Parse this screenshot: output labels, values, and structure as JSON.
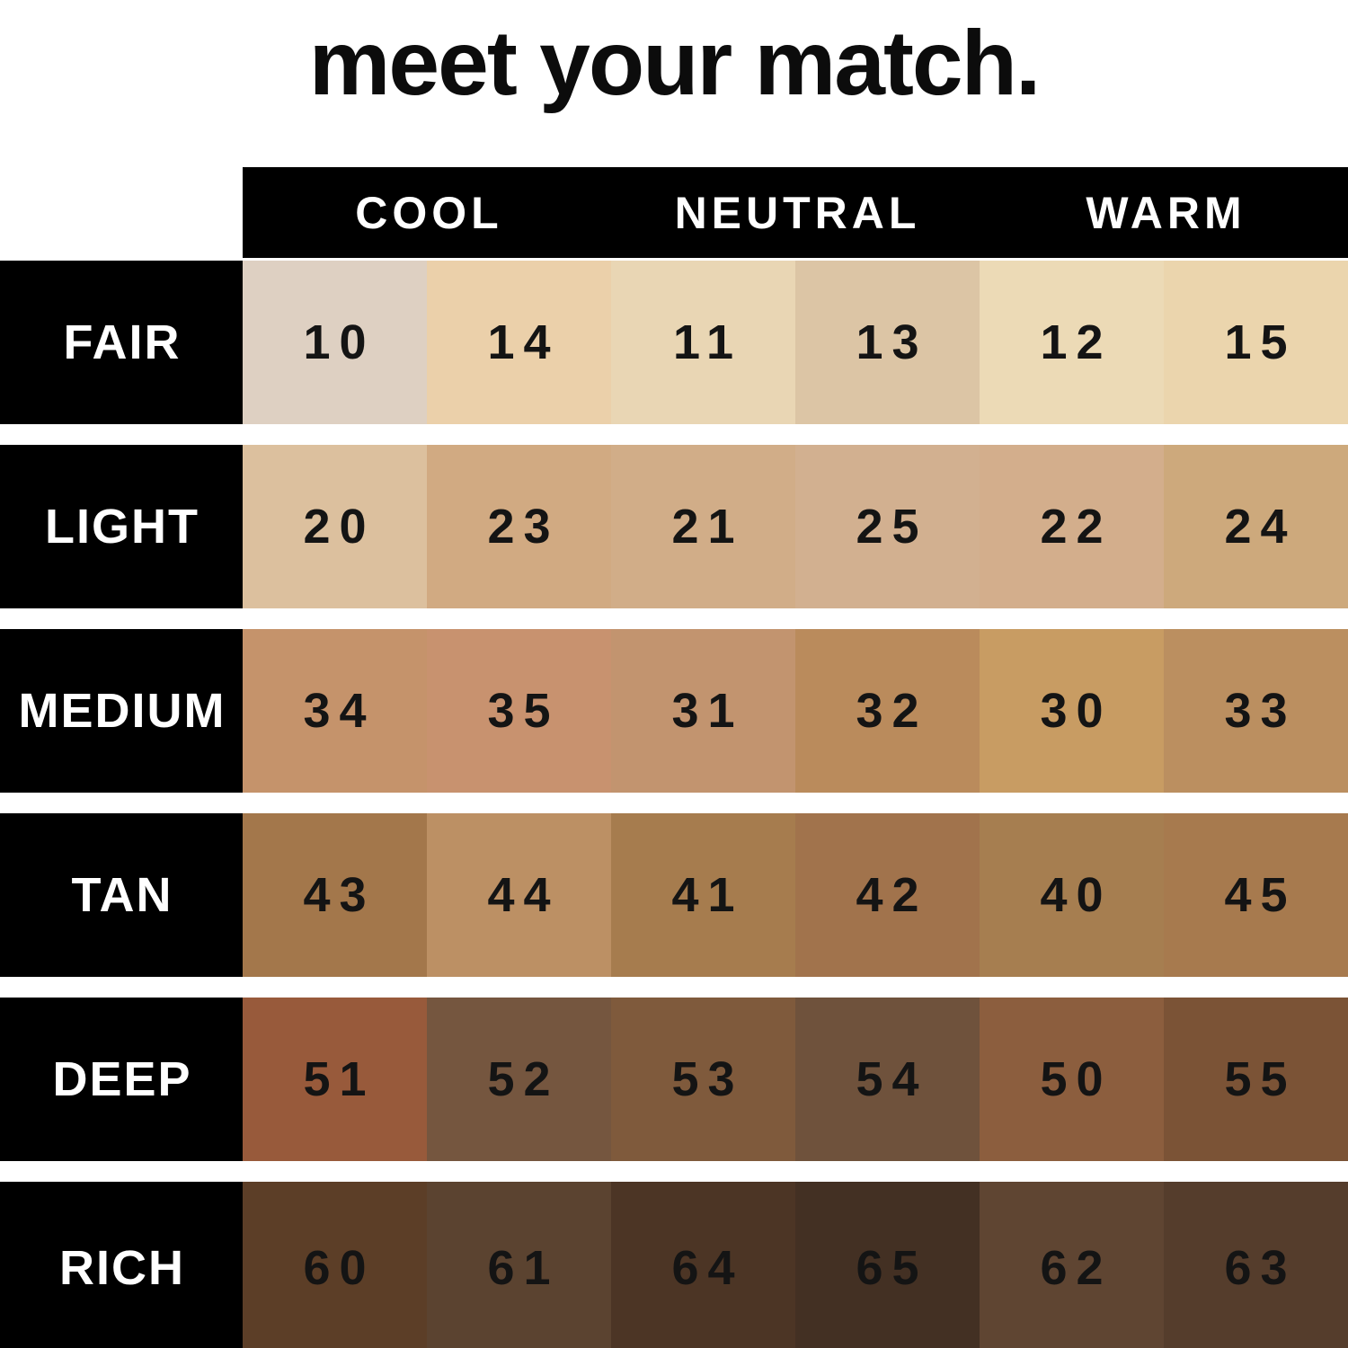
{
  "title": "meet your match.",
  "palette": {
    "background": "#ffffff",
    "bar_black": "#000000",
    "header_text": "#ffffff",
    "label_text": "#ffffff",
    "number_text": "#141414"
  },
  "chart_data": {
    "type": "table",
    "title": "meet your match.",
    "column_headers": [
      "COOL",
      "NEUTRAL",
      "WARM"
    ],
    "layout_note": "each undertone header spans two swatch columns; 6 swatch columns total",
    "row_labels": [
      "FAIR",
      "LIGHT",
      "MEDIUM",
      "TAN",
      "DEEP",
      "RICH"
    ],
    "rows": [
      {
        "label": "FAIR",
        "shades": [
          {
            "num": "10",
            "hex": "#ded0c2"
          },
          {
            "num": "14",
            "hex": "#ebd0aa"
          },
          {
            "num": "11",
            "hex": "#e9d6b4"
          },
          {
            "num": "13",
            "hex": "#dcc5a5"
          },
          {
            "num": "12",
            "hex": "#ecdab6"
          },
          {
            "num": "15",
            "hex": "#ebd5ad"
          }
        ]
      },
      {
        "label": "LIGHT",
        "shades": [
          {
            "num": "20",
            "hex": "#dcc09e"
          },
          {
            "num": "23",
            "hex": "#d1aa82"
          },
          {
            "num": "21",
            "hex": "#d1ad88"
          },
          {
            "num": "25",
            "hex": "#d2b090"
          },
          {
            "num": "22",
            "hex": "#d3ae8c"
          },
          {
            "num": "24",
            "hex": "#cda97c"
          }
        ]
      },
      {
        "label": "MEDIUM",
        "shades": [
          {
            "num": "34",
            "hex": "#c5936b"
          },
          {
            "num": "35",
            "hex": "#c8926f"
          },
          {
            "num": "31",
            "hex": "#c2946f"
          },
          {
            "num": "32",
            "hex": "#ba8b5c"
          },
          {
            "num": "30",
            "hex": "#c89c63"
          },
          {
            "num": "33",
            "hex": "#bb8f60"
          }
        ]
      },
      {
        "label": "TAN",
        "shades": [
          {
            "num": "43",
            "hex": "#a3774b"
          },
          {
            "num": "44",
            "hex": "#bc9064"
          },
          {
            "num": "41",
            "hex": "#a67c4e"
          },
          {
            "num": "42",
            "hex": "#a1734c"
          },
          {
            "num": "40",
            "hex": "#a67e50"
          },
          {
            "num": "45",
            "hex": "#a77a4e"
          }
        ]
      },
      {
        "label": "DEEP",
        "shades": [
          {
            "num": "51",
            "hex": "#985a3b"
          },
          {
            "num": "52",
            "hex": "#75563f"
          },
          {
            "num": "53",
            "hex": "#7f5a3c"
          },
          {
            "num": "54",
            "hex": "#6f523c"
          },
          {
            "num": "50",
            "hex": "#8c5e3e"
          },
          {
            "num": "55",
            "hex": "#7b5336"
          }
        ]
      },
      {
        "label": "RICH",
        "shades": [
          {
            "num": "60",
            "hex": "#5c3e27"
          },
          {
            "num": "61",
            "hex": "#5b4330"
          },
          {
            "num": "64",
            "hex": "#4c3525"
          },
          {
            "num": "65",
            "hex": "#433023"
          },
          {
            "num": "62",
            "hex": "#5f4532"
          },
          {
            "num": "63",
            "hex": "#553d2c"
          }
        ]
      }
    ]
  }
}
